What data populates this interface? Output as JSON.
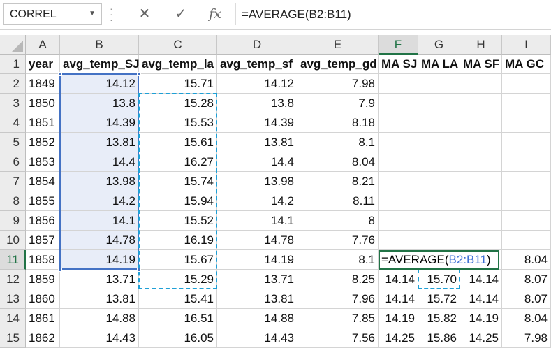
{
  "formula_bar": {
    "name_box": "CORREL",
    "cancel_icon": "✕",
    "enter_icon": "✓",
    "fx_label": "fx",
    "formula": "=AVERAGE(B2:B11)"
  },
  "columns": [
    "A",
    "B",
    "C",
    "D",
    "E",
    "F",
    "G",
    "H",
    "I"
  ],
  "header_row": [
    "year",
    "avg_temp_SJ",
    "avg_temp_la",
    "avg_temp_sf",
    "avg_temp_gd",
    "MA SJ",
    "MA LA",
    "MA SF",
    "MA GC"
  ],
  "rows": [
    {
      "n": "2",
      "cells": [
        "1849",
        "14.12",
        "15.71",
        "14.12",
        "7.98",
        "",
        "",
        "",
        ""
      ]
    },
    {
      "n": "3",
      "cells": [
        "1850",
        "13.8",
        "15.28",
        "13.8",
        "7.9",
        "",
        "",
        "",
        ""
      ]
    },
    {
      "n": "4",
      "cells": [
        "1851",
        "14.39",
        "15.53",
        "14.39",
        "8.18",
        "",
        "",
        "",
        ""
      ]
    },
    {
      "n": "5",
      "cells": [
        "1852",
        "13.81",
        "15.61",
        "13.81",
        "8.1",
        "",
        "",
        "",
        ""
      ]
    },
    {
      "n": "6",
      "cells": [
        "1853",
        "14.4",
        "16.27",
        "14.4",
        "8.04",
        "",
        "",
        "",
        ""
      ]
    },
    {
      "n": "7",
      "cells": [
        "1854",
        "13.98",
        "15.74",
        "13.98",
        "8.21",
        "",
        "",
        "",
        ""
      ]
    },
    {
      "n": "8",
      "cells": [
        "1855",
        "14.2",
        "15.94",
        "14.2",
        "8.11",
        "",
        "",
        "",
        ""
      ]
    },
    {
      "n": "9",
      "cells": [
        "1856",
        "14.1",
        "15.52",
        "14.1",
        "8",
        "",
        "",
        "",
        ""
      ]
    },
    {
      "n": "10",
      "cells": [
        "1857",
        "14.78",
        "16.19",
        "14.78",
        "7.76",
        "",
        "",
        "",
        ""
      ]
    },
    {
      "n": "11",
      "cells": [
        "1858",
        "14.19",
        "15.67",
        "14.19",
        "8.1",
        "",
        "",
        "",
        "8.04"
      ]
    },
    {
      "n": "12",
      "cells": [
        "1859",
        "13.71",
        "15.29",
        "13.71",
        "8.25",
        "14.14",
        "15.70",
        "14.14",
        "8.07"
      ]
    },
    {
      "n": "13",
      "cells": [
        "1860",
        "13.81",
        "15.41",
        "13.81",
        "7.96",
        "14.14",
        "15.72",
        "14.14",
        "8.07"
      ]
    },
    {
      "n": "14",
      "cells": [
        "1861",
        "14.88",
        "16.51",
        "14.88",
        "7.85",
        "14.19",
        "15.82",
        "14.19",
        "8.04"
      ]
    },
    {
      "n": "15",
      "cells": [
        "1862",
        "14.43",
        "16.05",
        "14.43",
        "7.56",
        "14.25",
        "15.86",
        "14.25",
        "7.98"
      ]
    }
  ],
  "editing_cell": {
    "address": "F11",
    "prefix": "=AVERAGE(",
    "ref": "B2:B11",
    "suffix": ")"
  },
  "colors": {
    "accent": "#217346",
    "ref_blue": "#4472c4",
    "marquee": "#1fa0d6"
  }
}
